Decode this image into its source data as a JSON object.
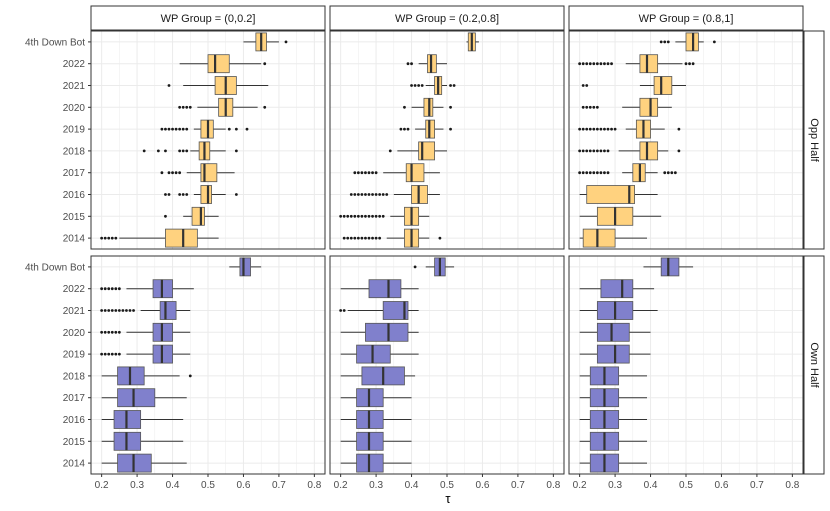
{
  "chart_data": {
    "type": "boxplot",
    "xlabel": "τ",
    "xlim": [
      0.17,
      0.83
    ],
    "xticks": [
      "0.2",
      "0.3",
      "0.4",
      "0.5",
      "0.6",
      "0.7",
      "0.8"
    ],
    "categories": [
      "4th Down Bot",
      "2022",
      "2021",
      "2020",
      "2019",
      "2018",
      "2017",
      "2016",
      "2015",
      "2014"
    ],
    "col_labels": [
      "WP Group = (0,0.2]",
      "WP Group = (0.2,0.8]",
      "WP Group = (0.8,1]"
    ],
    "row_labels": [
      "Opp Half",
      "Own Half"
    ],
    "colors": {
      "opp": "#ffd27f",
      "own": "#8080cc",
      "border": "#555555",
      "median": "#333333",
      "grid": "#ebebeb"
    },
    "panels": [
      [
        {
          "boxes": [
            {
              "q1": 0.635,
              "med": 0.65,
              "q3": 0.665,
              "lo": 0.6,
              "hi": 0.7,
              "out": [
                0.72
              ]
            },
            {
              "q1": 0.5,
              "med": 0.52,
              "q3": 0.56,
              "lo": 0.42,
              "hi": 0.65,
              "out": [
                0.66
              ]
            },
            {
              "q1": 0.52,
              "med": 0.55,
              "q3": 0.58,
              "lo": 0.43,
              "hi": 0.67,
              "out": [
                0.39
              ]
            },
            {
              "q1": 0.53,
              "med": 0.55,
              "q3": 0.57,
              "lo": 0.47,
              "hi": 0.64,
              "out": [
                0.42,
                0.43,
                0.44,
                0.45,
                0.66
              ]
            },
            {
              "q1": 0.48,
              "med": 0.5,
              "q3": 0.515,
              "lo": 0.46,
              "hi": 0.55,
              "out": [
                0.37,
                0.38,
                0.39,
                0.4,
                0.41,
                0.42,
                0.43,
                0.44,
                0.56,
                0.58,
                0.61
              ]
            },
            {
              "q1": 0.475,
              "med": 0.49,
              "q3": 0.505,
              "lo": 0.45,
              "hi": 0.55,
              "out": [
                0.32,
                0.36,
                0.38,
                0.42,
                0.43,
                0.44,
                0.58
              ]
            },
            {
              "q1": 0.48,
              "med": 0.49,
              "q3": 0.525,
              "lo": 0.44,
              "hi": 0.575,
              "out": [
                0.37,
                0.39,
                0.4,
                0.41,
                0.42
              ]
            },
            {
              "q1": 0.48,
              "med": 0.5,
              "q3": 0.51,
              "lo": 0.46,
              "hi": 0.55,
              "out": [
                0.38,
                0.39,
                0.42,
                0.43,
                0.44,
                0.58
              ]
            },
            {
              "q1": 0.455,
              "med": 0.48,
              "q3": 0.49,
              "lo": 0.43,
              "hi": 0.53,
              "out": [
                0.38
              ]
            },
            {
              "q1": 0.38,
              "med": 0.43,
              "q3": 0.47,
              "lo": 0.25,
              "hi": 0.53,
              "out": [
                0.2,
                0.21,
                0.22,
                0.23,
                0.24
              ]
            }
          ]
        },
        {
          "boxes": [
            {
              "q1": 0.56,
              "med": 0.57,
              "q3": 0.58,
              "lo": 0.555,
              "hi": 0.59,
              "out": []
            },
            {
              "q1": 0.445,
              "med": 0.455,
              "q3": 0.47,
              "lo": 0.42,
              "hi": 0.5,
              "out": [
                0.39,
                0.4
              ]
            },
            {
              "q1": 0.465,
              "med": 0.475,
              "q3": 0.485,
              "lo": 0.44,
              "hi": 0.5,
              "out": [
                0.4,
                0.41,
                0.42,
                0.43,
                0.51,
                0.52
              ]
            },
            {
              "q1": 0.435,
              "med": 0.45,
              "q3": 0.46,
              "lo": 0.4,
              "hi": 0.49,
              "out": [
                0.38,
                0.51
              ]
            },
            {
              "q1": 0.44,
              "med": 0.45,
              "q3": 0.465,
              "lo": 0.41,
              "hi": 0.49,
              "out": [
                0.37,
                0.38,
                0.39,
                0.51
              ]
            },
            {
              "q1": 0.42,
              "med": 0.43,
              "q3": 0.465,
              "lo": 0.36,
              "hi": 0.5,
              "out": [
                0.34
              ]
            },
            {
              "q1": 0.385,
              "med": 0.4,
              "q3": 0.435,
              "lo": 0.32,
              "hi": 0.48,
              "out": [
                0.24,
                0.25,
                0.26,
                0.27,
                0.28,
                0.29,
                0.3
              ]
            },
            {
              "q1": 0.4,
              "med": 0.42,
              "q3": 0.445,
              "lo": 0.35,
              "hi": 0.48,
              "out": [
                0.23,
                0.24,
                0.25,
                0.26,
                0.27,
                0.28,
                0.29,
                0.3,
                0.31,
                0.32,
                0.33
              ]
            },
            {
              "q1": 0.38,
              "med": 0.4,
              "q3": 0.42,
              "lo": 0.34,
              "hi": 0.45,
              "out": [
                0.2,
                0.21,
                0.22,
                0.23,
                0.24,
                0.25,
                0.26,
                0.27,
                0.28,
                0.29,
                0.3,
                0.31,
                0.32
              ]
            },
            {
              "q1": 0.38,
              "med": 0.4,
              "q3": 0.42,
              "lo": 0.33,
              "hi": 0.45,
              "out": [
                0.21,
                0.22,
                0.23,
                0.24,
                0.25,
                0.26,
                0.27,
                0.28,
                0.29,
                0.3,
                0.31,
                0.48
              ]
            }
          ]
        },
        {
          "boxes": [
            {
              "q1": 0.5,
              "med": 0.52,
              "q3": 0.535,
              "lo": 0.47,
              "hi": 0.55,
              "out": [
                0.43,
                0.44,
                0.45,
                0.58
              ]
            },
            {
              "q1": 0.37,
              "med": 0.39,
              "q3": 0.42,
              "lo": 0.33,
              "hi": 0.49,
              "out": [
                0.2,
                0.21,
                0.22,
                0.23,
                0.24,
                0.25,
                0.26,
                0.27,
                0.28,
                0.29,
                0.5,
                0.51,
                0.52
              ]
            },
            {
              "q1": 0.41,
              "med": 0.43,
              "q3": 0.46,
              "lo": 0.37,
              "hi": 0.5,
              "out": [
                0.21,
                0.22
              ]
            },
            {
              "q1": 0.37,
              "med": 0.4,
              "q3": 0.42,
              "lo": 0.32,
              "hi": 0.46,
              "out": [
                0.21,
                0.22,
                0.23,
                0.24,
                0.25
              ]
            },
            {
              "q1": 0.36,
              "med": 0.38,
              "q3": 0.4,
              "lo": 0.33,
              "hi": 0.44,
              "out": [
                0.2,
                0.21,
                0.22,
                0.23,
                0.24,
                0.25,
                0.26,
                0.27,
                0.28,
                0.29,
                0.3,
                0.48
              ]
            },
            {
              "q1": 0.37,
              "med": 0.39,
              "q3": 0.42,
              "lo": 0.31,
              "hi": 0.45,
              "out": [
                0.2,
                0.21,
                0.22,
                0.23,
                0.24,
                0.25,
                0.26,
                0.27,
                0.28,
                0.48
              ]
            },
            {
              "q1": 0.35,
              "med": 0.37,
              "q3": 0.385,
              "lo": 0.32,
              "hi": 0.42,
              "out": [
                0.2,
                0.21,
                0.22,
                0.23,
                0.24,
                0.25,
                0.26,
                0.27,
                0.28,
                0.44,
                0.45,
                0.46,
                0.47
              ]
            },
            {
              "q1": 0.22,
              "med": 0.34,
              "q3": 0.355,
              "lo": 0.2,
              "hi": 0.42,
              "out": []
            },
            {
              "q1": 0.25,
              "med": 0.3,
              "q3": 0.35,
              "lo": 0.2,
              "hi": 0.43,
              "out": []
            },
            {
              "q1": 0.21,
              "med": 0.25,
              "q3": 0.3,
              "lo": 0.2,
              "hi": 0.39,
              "out": []
            }
          ]
        }
      ],
      [
        {
          "boxes": [
            {
              "q1": 0.59,
              "med": 0.6,
              "q3": 0.62,
              "lo": 0.56,
              "hi": 0.65,
              "out": []
            },
            {
              "q1": 0.345,
              "med": 0.37,
              "q3": 0.4,
              "lo": 0.27,
              "hi": 0.46,
              "out": [
                0.2,
                0.21,
                0.22,
                0.23,
                0.24,
                0.25
              ]
            },
            {
              "q1": 0.365,
              "med": 0.38,
              "q3": 0.41,
              "lo": 0.31,
              "hi": 0.45,
              "out": [
                0.2,
                0.21,
                0.22,
                0.23,
                0.24,
                0.25,
                0.26,
                0.27,
                0.28,
                0.29
              ]
            },
            {
              "q1": 0.345,
              "med": 0.37,
              "q3": 0.4,
              "lo": 0.27,
              "hi": 0.45,
              "out": [
                0.2,
                0.21,
                0.22,
                0.23,
                0.24,
                0.25
              ]
            },
            {
              "q1": 0.345,
              "med": 0.37,
              "q3": 0.4,
              "lo": 0.27,
              "hi": 0.45,
              "out": [
                0.2,
                0.21,
                0.22,
                0.23,
                0.24,
                0.25
              ]
            },
            {
              "q1": 0.245,
              "med": 0.28,
              "q3": 0.32,
              "lo": 0.2,
              "hi": 0.42,
              "out": [
                0.45
              ]
            },
            {
              "q1": 0.245,
              "med": 0.29,
              "q3": 0.35,
              "lo": 0.2,
              "hi": 0.44,
              "out": []
            },
            {
              "q1": 0.235,
              "med": 0.27,
              "q3": 0.31,
              "lo": 0.2,
              "hi": 0.43,
              "out": []
            },
            {
              "q1": 0.235,
              "med": 0.27,
              "q3": 0.31,
              "lo": 0.2,
              "hi": 0.43,
              "out": []
            },
            {
              "q1": 0.245,
              "med": 0.29,
              "q3": 0.34,
              "lo": 0.2,
              "hi": 0.44,
              "out": []
            }
          ]
        },
        {
          "boxes": [
            {
              "q1": 0.465,
              "med": 0.48,
              "q3": 0.495,
              "lo": 0.44,
              "hi": 0.52,
              "out": [
                0.41
              ]
            },
            {
              "q1": 0.28,
              "med": 0.335,
              "q3": 0.37,
              "lo": 0.2,
              "hi": 0.42,
              "out": []
            },
            {
              "q1": 0.32,
              "med": 0.38,
              "q3": 0.39,
              "lo": 0.22,
              "hi": 0.42,
              "out": [
                0.2,
                0.21
              ]
            },
            {
              "q1": 0.27,
              "med": 0.335,
              "q3": 0.39,
              "lo": 0.2,
              "hi": 0.42,
              "out": []
            },
            {
              "q1": 0.245,
              "med": 0.29,
              "q3": 0.34,
              "lo": 0.2,
              "hi": 0.42,
              "out": []
            },
            {
              "q1": 0.26,
              "med": 0.32,
              "q3": 0.38,
              "lo": 0.2,
              "hi": 0.41,
              "out": []
            },
            {
              "q1": 0.245,
              "med": 0.28,
              "q3": 0.32,
              "lo": 0.2,
              "hi": 0.4,
              "out": []
            },
            {
              "q1": 0.245,
              "med": 0.28,
              "q3": 0.32,
              "lo": 0.2,
              "hi": 0.4,
              "out": []
            },
            {
              "q1": 0.245,
              "med": 0.28,
              "q3": 0.32,
              "lo": 0.2,
              "hi": 0.4,
              "out": []
            },
            {
              "q1": 0.245,
              "med": 0.28,
              "q3": 0.32,
              "lo": 0.2,
              "hi": 0.4,
              "out": []
            }
          ]
        },
        {
          "boxes": [
            {
              "q1": 0.43,
              "med": 0.45,
              "q3": 0.48,
              "lo": 0.38,
              "hi": 0.52,
              "out": []
            },
            {
              "q1": 0.26,
              "med": 0.32,
              "q3": 0.35,
              "lo": 0.2,
              "hi": 0.41,
              "out": []
            },
            {
              "q1": 0.25,
              "med": 0.3,
              "q3": 0.35,
              "lo": 0.2,
              "hi": 0.42,
              "out": []
            },
            {
              "q1": 0.25,
              "med": 0.29,
              "q3": 0.34,
              "lo": 0.2,
              "hi": 0.4,
              "out": []
            },
            {
              "q1": 0.25,
              "med": 0.3,
              "q3": 0.34,
              "lo": 0.2,
              "hi": 0.4,
              "out": []
            },
            {
              "q1": 0.23,
              "med": 0.27,
              "q3": 0.31,
              "lo": 0.2,
              "hi": 0.39,
              "out": []
            },
            {
              "q1": 0.23,
              "med": 0.27,
              "q3": 0.31,
              "lo": 0.2,
              "hi": 0.39,
              "out": []
            },
            {
              "q1": 0.23,
              "med": 0.27,
              "q3": 0.31,
              "lo": 0.2,
              "hi": 0.39,
              "out": []
            },
            {
              "q1": 0.23,
              "med": 0.27,
              "q3": 0.31,
              "lo": 0.2,
              "hi": 0.39,
              "out": []
            },
            {
              "q1": 0.23,
              "med": 0.27,
              "q3": 0.31,
              "lo": 0.2,
              "hi": 0.39,
              "out": []
            }
          ]
        }
      ]
    ]
  }
}
